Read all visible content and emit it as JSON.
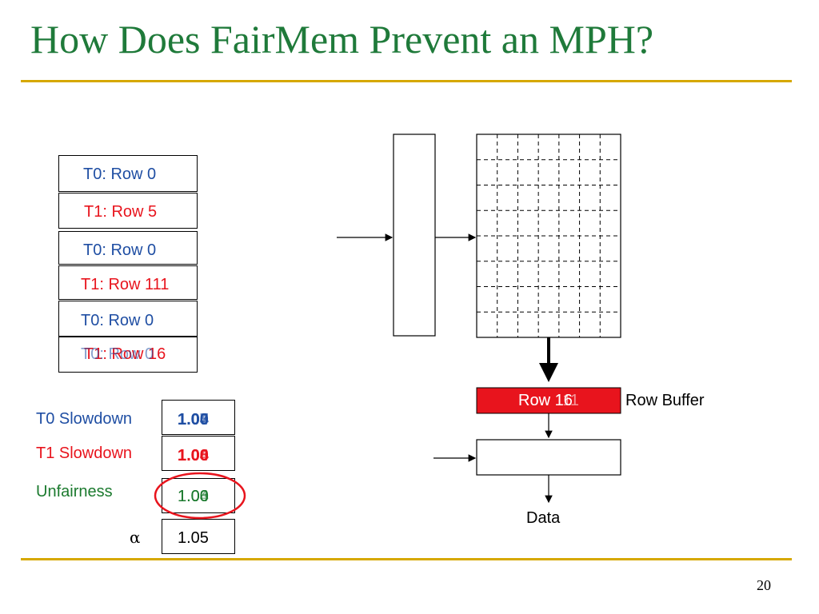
{
  "slide": {
    "title": "How Does FairMem Prevent an MPH?",
    "page_number": "20"
  },
  "colors": {
    "title": "#1f7a3a",
    "rule": "#d6a800",
    "blue": "#1f4ea3",
    "red": "#e8141d",
    "green": "#1b7a2e",
    "circle": "#e8141d",
    "row_buffer_fill": "#e8141d"
  },
  "request_queue": [
    {
      "text": "T0: Row 0",
      "thread": "T0"
    },
    {
      "text": "T1: Row 5",
      "thread": "T1"
    },
    {
      "text": "T0: Row 0",
      "thread": "T0"
    },
    {
      "text": "T1: Row 111",
      "thread": "T1"
    },
    {
      "text": "T0: Row 0",
      "thread": "T0"
    },
    {
      "text": "T1: Row 16",
      "thread": "T1"
    },
    {
      "text": "T0: Row 0",
      "thread": "T0"
    }
  ],
  "metrics": {
    "t0_slowdown": {
      "label": "T0 Slowdown",
      "values": [
        "1.00",
        "1.04",
        "1.07",
        "1.03"
      ]
    },
    "t1_slowdown": {
      "label": "T1 Slowdown",
      "values": [
        "1.00",
        "1.04",
        "1.06",
        "1.08"
      ]
    },
    "unfairness": {
      "label": "Unfairness",
      "values": [
        "1.00",
        "1.04",
        "1.03",
        "1.06"
      ]
    },
    "alpha": {
      "label": "α",
      "value": "1.05"
    }
  },
  "dram": {
    "row_buffer_label": "Row Buffer",
    "row_buffer_contents": [
      "Row 16",
      "Row 111"
    ],
    "data_label": "Data"
  }
}
